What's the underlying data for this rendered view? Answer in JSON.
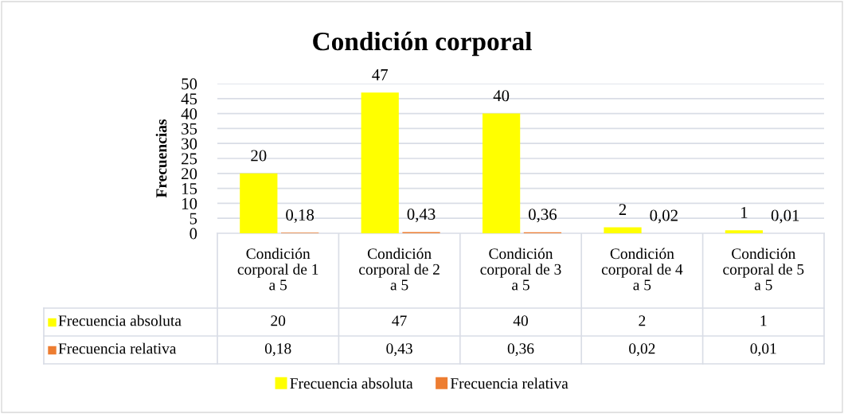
{
  "chart_data": {
    "type": "bar",
    "title": "Condición corporal",
    "ylabel": "Frecuencias",
    "categories": [
      "Condición\ncorporal de 1\na 5",
      "Condición\ncorporal de 2\na 5",
      "Condición\ncorporal de 3\na 5",
      "Condición\ncorporal de 4\na 5",
      "Condición\ncorporal de 5\na 5"
    ],
    "series": [
      {
        "name": "Frecuencia absoluta",
        "color": "#ffff00",
        "values": [
          20,
          47,
          40,
          2,
          1
        ],
        "value_labels": [
          "20",
          "47",
          "40",
          "2",
          "1"
        ]
      },
      {
        "name": "Frecuencia relativa",
        "color": "#ed7d31",
        "values": [
          0.18,
          0.43,
          0.36,
          0.02,
          0.01
        ],
        "value_labels": [
          "0,18",
          "0,43",
          "0,36",
          "0,02",
          "0,01"
        ]
      }
    ],
    "ylim": [
      0,
      50
    ],
    "yticks": [
      0,
      5,
      10,
      15,
      20,
      25,
      30,
      35,
      40,
      45,
      50
    ],
    "grid": "y",
    "legend": "bottom"
  }
}
